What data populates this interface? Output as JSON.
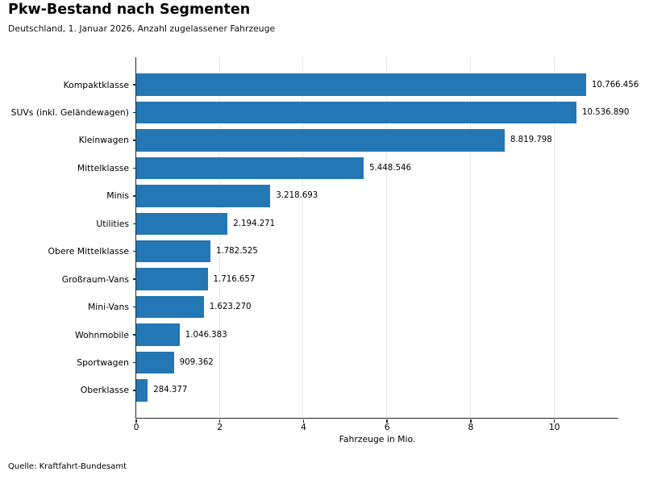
{
  "header": {
    "title": "Pkw-Bestand nach Segmenten",
    "subtitle": "Deutschland, 1. Januar 2026, Anzahl zugelassener Fahrzeuge"
  },
  "footer": {
    "source": "Quelle: Kraftfahrt-Bundesamt"
  },
  "chart_data": {
    "type": "bar",
    "orientation": "horizontal",
    "title": "Pkw-Bestand nach Segmenten",
    "subtitle": "Deutschland, 1. Januar 2026, Anzahl zugelassener Fahrzeuge",
    "categories": [
      "Kompaktklasse",
      "SUVs (inkl. Geländewagen)",
      "Kleinwagen",
      "Mittelklasse",
      "Minis",
      "Utilities",
      "Obere Mittelklasse",
      "Großraum-Vans",
      "Mini-Vans",
      "Wohnmobile",
      "Sportwagen",
      "Oberklasse"
    ],
    "values": [
      10766456,
      10536890,
      8819798,
      5448546,
      3218693,
      2194271,
      1782525,
      1716657,
      1623270,
      1046383,
      909362,
      284377
    ],
    "value_labels": [
      "10.766.456",
      "10.536.890",
      "8.819.798",
      "5.448.546",
      "3.218.693",
      "2.194.271",
      "1.782.525",
      "1.716.657",
      "1.623.270",
      "1.046.383",
      "909.362",
      "284.377"
    ],
    "xlabel": "Fahrzeuge in Mio.",
    "x_ticks": [
      0,
      2,
      4,
      6,
      8,
      10
    ],
    "x_tick_labels": [
      "0",
      "2",
      "4",
      "6",
      "8",
      "10"
    ],
    "xlim": [
      0,
      11.53
    ],
    "unit_divisor": 1000000,
    "bar_color": "#2377b4",
    "grid": "vertical",
    "gridline_color": "#e7e7e7",
    "axis_color": "#262626",
    "legend": "none",
    "source": "Quelle: Kraftfahrt-Bundesamt"
  }
}
